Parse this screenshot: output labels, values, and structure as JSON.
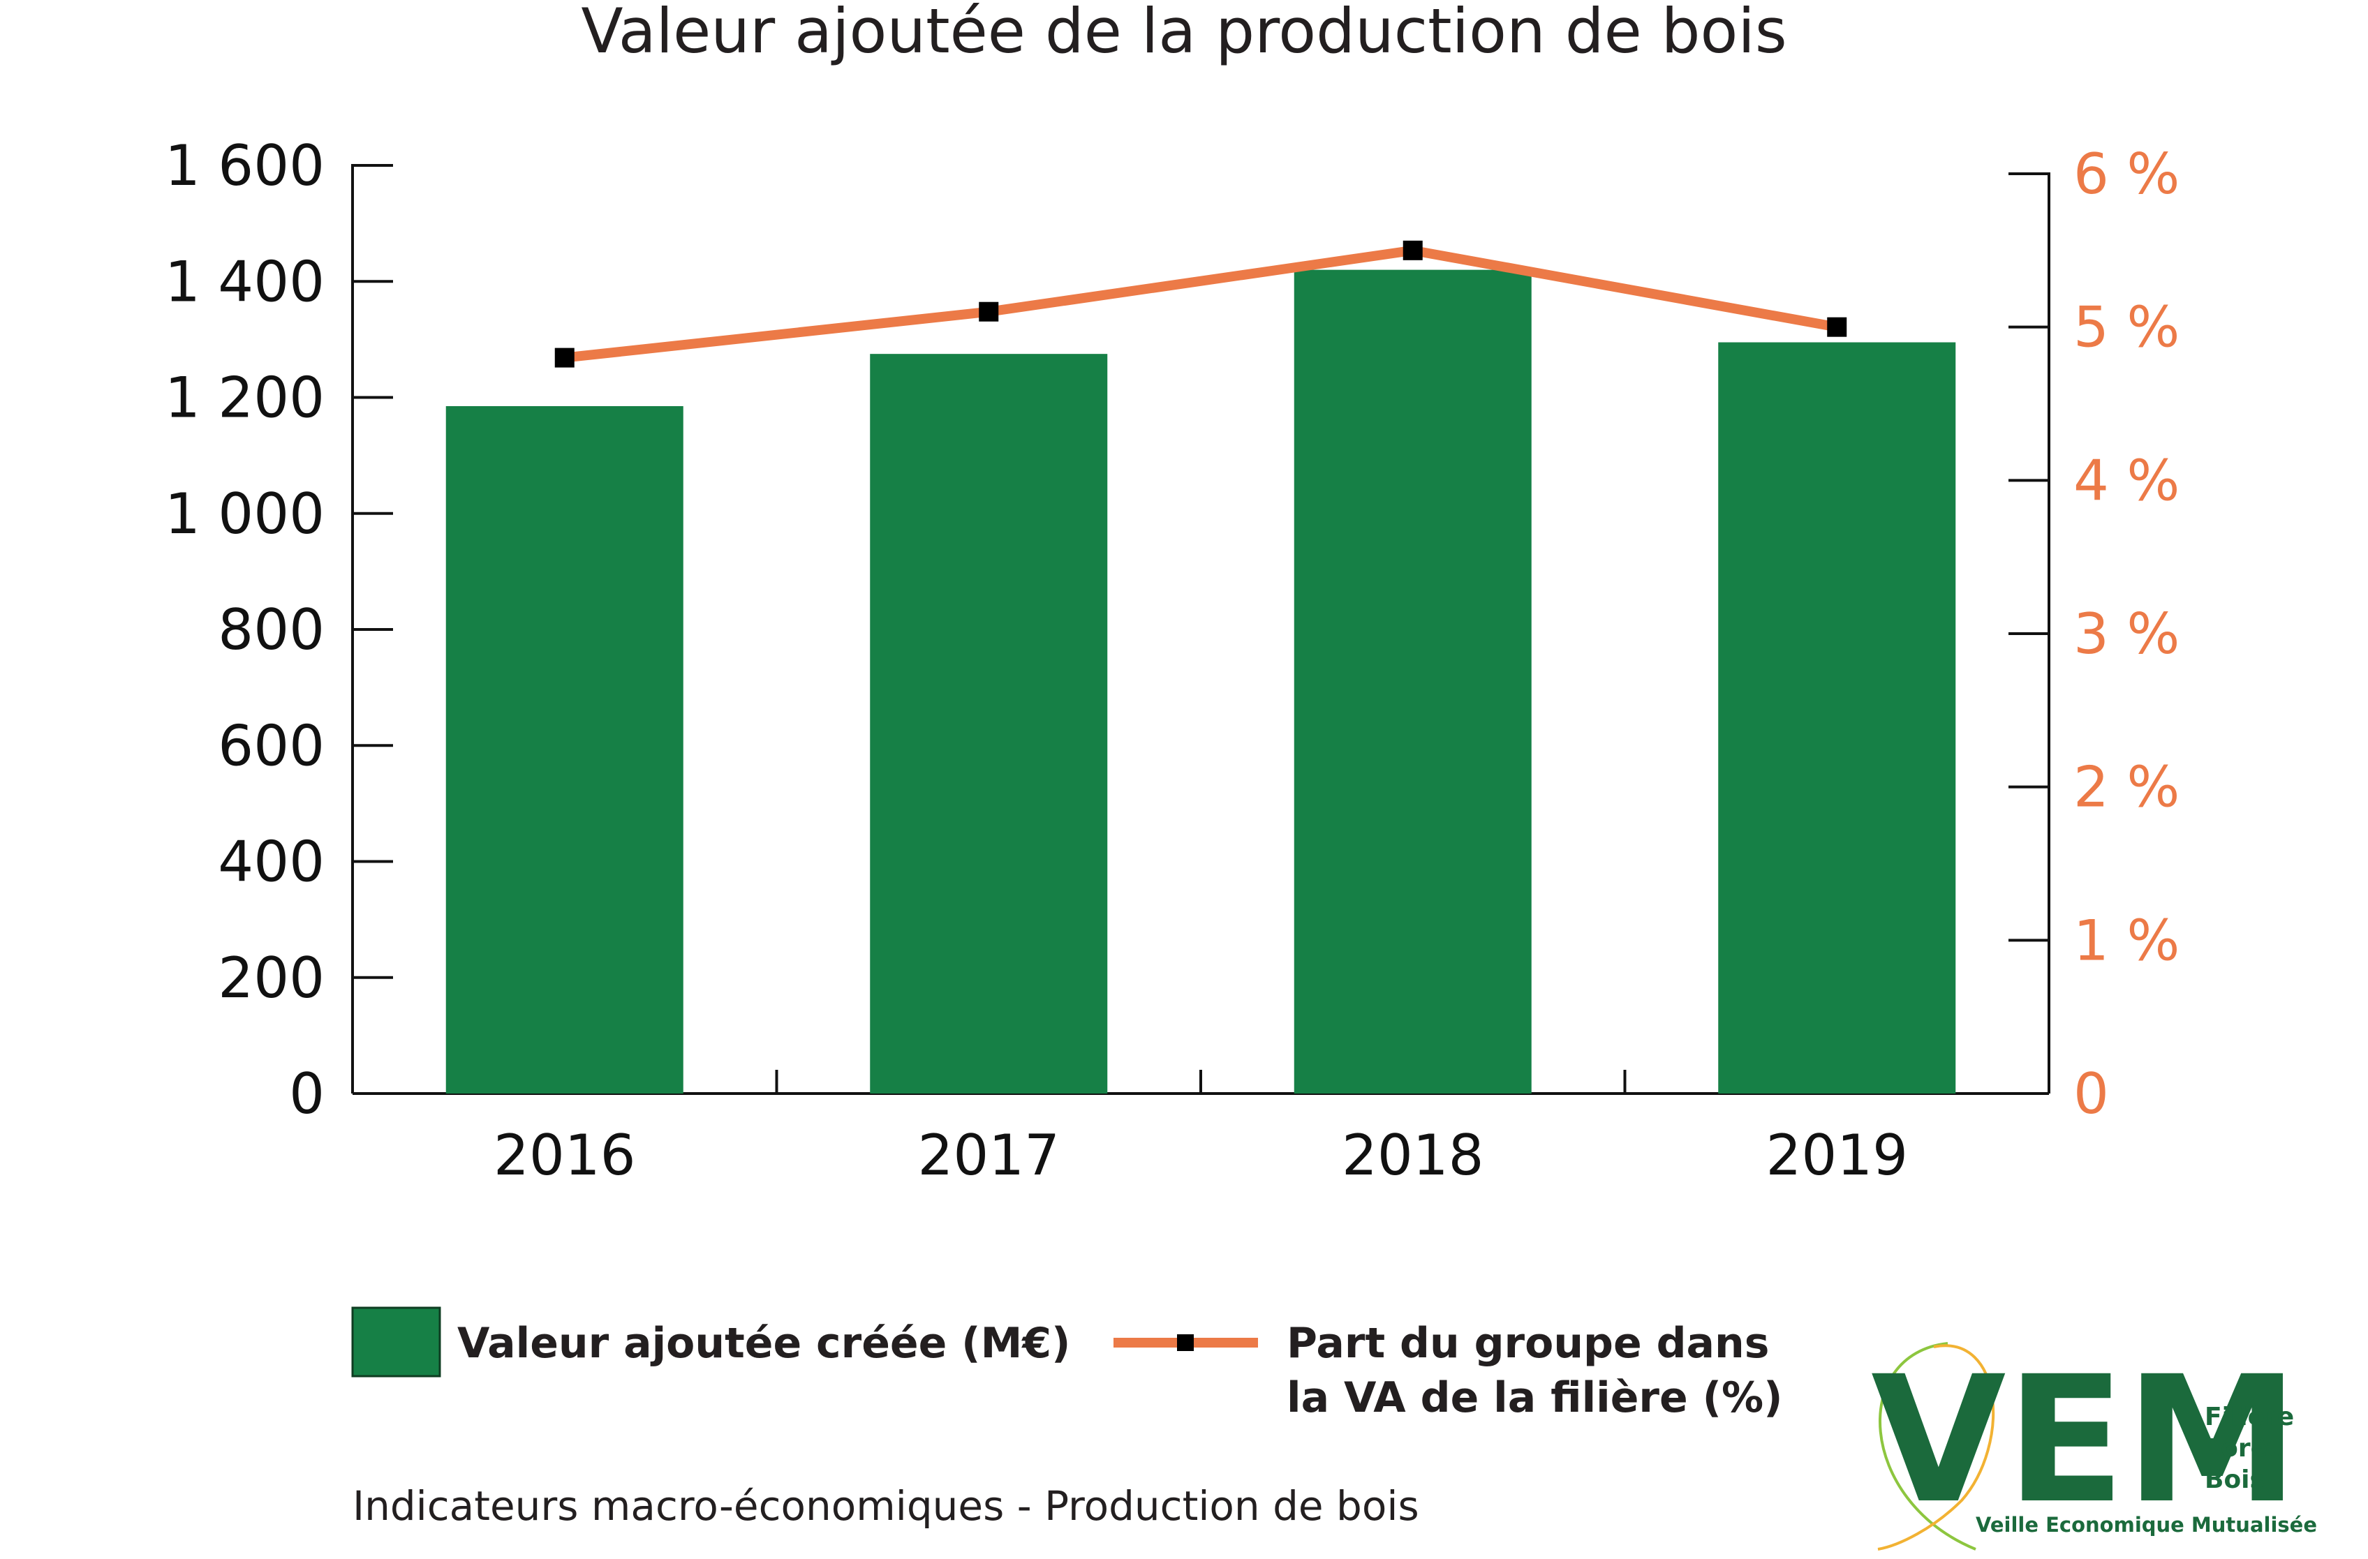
{
  "chart_data": {
    "type": "bar",
    "title": "Valeur ajoutée de la production de bois",
    "categories": [
      "2016",
      "2017",
      "2018",
      "2019"
    ],
    "series": [
      {
        "name": "Valeur ajoutée créée (M€)",
        "type": "bar",
        "axis": "left",
        "values": [
          1185,
          1275,
          1420,
          1295
        ]
      },
      {
        "name": "Part du groupe dans la VA de la filière  (%)",
        "type": "line",
        "axis": "right",
        "values": [
          4.8,
          5.1,
          5.5,
          5.0
        ]
      }
    ],
    "y_left": {
      "ticks": [
        "0",
        "200",
        "400",
        "600",
        "800",
        "1 000",
        "1 200",
        "1 400",
        "1 600"
      ],
      "range": [
        0,
        1600
      ]
    },
    "y_right": {
      "ticks": [
        "0",
        "1 %",
        "2 %",
        "3 %",
        "4 %",
        "5 %",
        "6  %"
      ],
      "range": [
        0,
        6
      ]
    },
    "grid": false,
    "legend_position": "bottom-left",
    "colors": {
      "bar": "#168046",
      "line": "#ec7a47",
      "marker": "#000000"
    }
  },
  "legend": {
    "bar_label": "Valeur ajoutée créée (M€)",
    "line_label_1": "Part du groupe dans",
    "line_label_2": "la VA de la filière  (%)"
  },
  "footer": "Indicateurs macro-économiques - Production de bois",
  "logo": {
    "letters": "VEM",
    "line1": "Filière",
    "line2": "Forêt",
    "line3": "Bois",
    "subtitle": "Veille Economique Mutualisée",
    "color": "#1b6a3c"
  }
}
